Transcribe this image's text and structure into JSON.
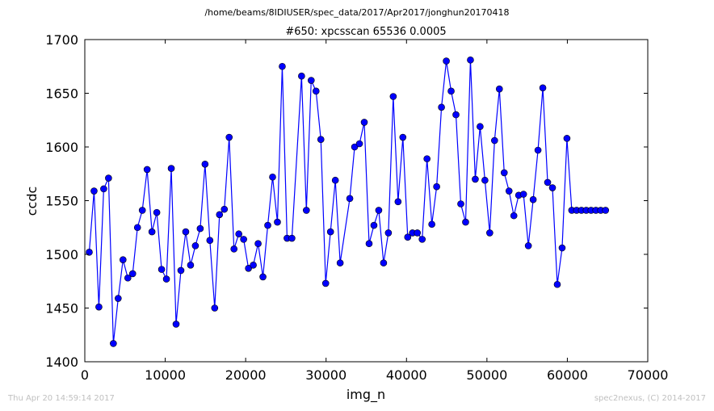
{
  "header": {
    "path": "/home/beams/8IDIUSER/spec_data/2017/Apr2017/jonghun20170418"
  },
  "footer": {
    "left": "Thu Apr 20 14:59:14 2017",
    "right": "spec2nexus, (C) 2014-2017"
  },
  "colors": {
    "series": "#0000ff",
    "axes": "#000000",
    "footer_text": "#c0c0c0"
  },
  "chart_data": {
    "type": "line",
    "title": "#650: xpcsscan 65536 0.0005",
    "xlabel": "img_n",
    "ylabel": "ccdc",
    "xlim": [
      0,
      70000
    ],
    "ylim": [
      1400,
      1700
    ],
    "xticks": [
      0,
      10000,
      20000,
      30000,
      40000,
      50000,
      60000,
      70000
    ],
    "yticks": [
      1400,
      1450,
      1500,
      1550,
      1600,
      1650,
      1700
    ],
    "grid": false,
    "marker": "circle",
    "series": [
      {
        "x": [
          550,
          1150,
          1750,
          2350,
          2950,
          3550,
          4150,
          4750,
          5350,
          5950,
          6550,
          7150,
          7750,
          8350,
          8950,
          9550,
          10150,
          10750,
          11350,
          11950,
          12550,
          13150,
          13750,
          14350,
          14950,
          15550,
          16150,
          16750,
          17350,
          17950,
          18550,
          19150,
          19750,
          20350,
          20950,
          21550,
          22150,
          22750,
          23350,
          23950,
          24550,
          25150,
          25750,
          26950,
          27550,
          28150,
          28750,
          29350,
          29950,
          30550,
          31150,
          31750,
          32950,
          33550,
          34150,
          34750,
          35350,
          35950,
          36550,
          37150,
          37750,
          38350,
          38950,
          39550,
          40150,
          40750,
          41350,
          41950,
          42550,
          43150,
          43750,
          44350,
          44950,
          45550,
          46150,
          46750,
          47350,
          47950,
          48550,
          49150,
          49750,
          50350,
          50950,
          51550,
          52150,
          52750,
          53350,
          53950,
          54550,
          55150,
          55750,
          56350,
          56950,
          57550,
          58150,
          58750,
          59350,
          59950,
          60550,
          61150,
          61750,
          62350,
          62950,
          63550,
          64150,
          64750
        ],
        "y": [
          1502,
          1559,
          1451,
          1561,
          1571,
          1417,
          1459,
          1495,
          1478,
          1482,
          1525,
          1541,
          1579,
          1521,
          1539,
          1486,
          1477,
          1580,
          1435,
          1485,
          1521,
          1490,
          1508,
          1524,
          1584,
          1513,
          1450,
          1537,
          1542,
          1609,
          1505,
          1519,
          1514,
          1487,
          1490,
          1510,
          1479,
          1527,
          1572,
          1530,
          1675,
          1515,
          1515,
          1666,
          1541,
          1662,
          1652,
          1607,
          1473,
          1521,
          1569,
          1492,
          1552,
          1600,
          1603,
          1623,
          1510,
          1527,
          1541,
          1492,
          1520,
          1647,
          1549,
          1609,
          1516,
          1520,
          1520,
          1514,
          1589,
          1528,
          1563,
          1637,
          1680,
          1652,
          1630,
          1547,
          1530,
          1681,
          1570,
          1619,
          1569,
          1520,
          1606,
          1654,
          1576,
          1559,
          1536,
          1555,
          1556,
          1508,
          1551,
          1597,
          1655,
          1567,
          1562,
          1472,
          1506,
          1608,
          1541,
          1541,
          1541,
          1541,
          1541,
          1541,
          1541,
          1541
        ]
      }
    ]
  }
}
